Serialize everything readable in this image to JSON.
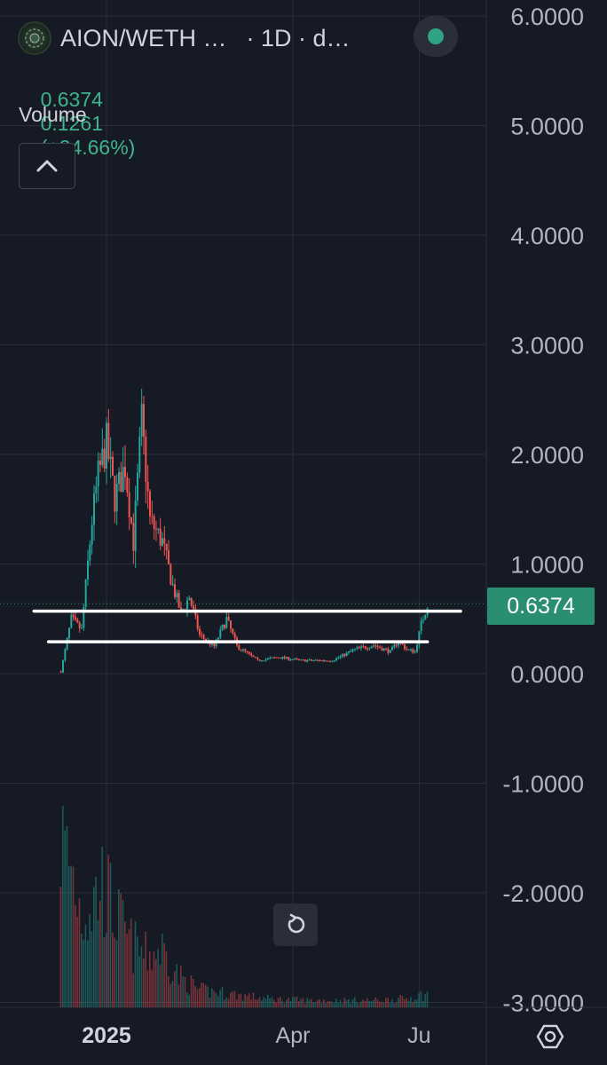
{
  "header": {
    "symbol": "AION/WETH …",
    "interval": "· 1D · d…",
    "ohlc": {
      "last": "0.6374",
      "change": "0.1261",
      "change_pct": "(+24.66%)"
    },
    "volume_label": "Volume"
  },
  "icons": {
    "logo": "aion-logo-icon",
    "status": "market-status-dot-icon",
    "collapse": "chevron-up-icon",
    "reset": "reset-icon",
    "settings": "settings-icon"
  },
  "price_badge": "0.6374",
  "colors": {
    "background": "#161a25",
    "grid": "#2a2e39",
    "up": "#26a69a",
    "down": "#ef5350",
    "badge": "#2a8f70",
    "text": "#d1d4dc"
  },
  "chart_data": {
    "type": "candlestick",
    "title": "",
    "xlabel": "",
    "ylabel": "",
    "ylim": [
      -3.0,
      6.0
    ],
    "y_ticks": [
      "6.0000",
      "5.0000",
      "4.0000",
      "3.0000",
      "2.0000",
      "1.0000",
      "0.0000",
      "-1.0000",
      "-2.0000",
      "-3.0000"
    ],
    "x_ticks": [
      "2025",
      "Apr",
      "Ju"
    ],
    "x_tick_dates": [
      "2025-01-01",
      "2025-04-01",
      "2025-06-01"
    ],
    "x_range": [
      "2024-11-01",
      "2025-06-25"
    ],
    "last_price": 0.6374,
    "grid": true,
    "series": [
      {
        "kind": "price",
        "points": [
          {
            "date": "2024-12-10",
            "close": 0.02
          },
          {
            "date": "2024-12-15",
            "close": 0.5
          },
          {
            "date": "2024-12-20",
            "close": 0.4
          },
          {
            "date": "2024-12-25",
            "close": 1.4
          },
          {
            "date": "2024-12-28",
            "close": 1.8
          },
          {
            "date": "2025-01-01",
            "close": 2.1
          },
          {
            "date": "2025-01-05",
            "close": 1.6
          },
          {
            "date": "2025-01-10",
            "close": 1.9
          },
          {
            "date": "2025-01-14",
            "close": 1.2
          },
          {
            "date": "2025-01-18",
            "close": 2.3
          },
          {
            "date": "2025-01-22",
            "close": 1.4
          },
          {
            "date": "2025-01-28",
            "close": 1.2
          },
          {
            "date": "2025-02-02",
            "close": 0.8
          },
          {
            "date": "2025-02-06",
            "close": 0.55
          },
          {
            "date": "2025-02-10",
            "close": 0.7
          },
          {
            "date": "2025-02-15",
            "close": 0.35
          },
          {
            "date": "2025-02-22",
            "close": 0.25
          },
          {
            "date": "2025-02-28",
            "close": 0.5
          },
          {
            "date": "2025-03-05",
            "close": 0.25
          },
          {
            "date": "2025-03-15",
            "close": 0.12
          },
          {
            "date": "2025-03-25",
            "close": 0.15
          },
          {
            "date": "2025-04-05",
            "close": 0.12
          },
          {
            "date": "2025-04-20",
            "close": 0.12
          },
          {
            "date": "2025-05-01",
            "close": 0.22
          },
          {
            "date": "2025-05-10",
            "close": 0.26
          },
          {
            "date": "2025-05-18",
            "close": 0.2
          },
          {
            "date": "2025-05-22",
            "close": 0.3
          },
          {
            "date": "2025-05-26",
            "close": 0.22
          },
          {
            "date": "2025-05-30",
            "close": 0.2
          },
          {
            "date": "2025-06-02",
            "close": 0.45
          },
          {
            "date": "2025-06-05",
            "close": 0.6374
          }
        ]
      },
      {
        "kind": "volume",
        "relative_points": [
          {
            "date": "2024-12-10",
            "v": 0.98
          },
          {
            "date": "2024-12-15",
            "v": 0.82
          },
          {
            "date": "2024-12-20",
            "v": 0.55
          },
          {
            "date": "2024-12-25",
            "v": 0.6
          },
          {
            "date": "2024-12-30",
            "v": 0.72
          },
          {
            "date": "2025-01-05",
            "v": 0.55
          },
          {
            "date": "2025-01-12",
            "v": 0.38
          },
          {
            "date": "2025-01-20",
            "v": 0.3
          },
          {
            "date": "2025-01-28",
            "v": 0.34
          },
          {
            "date": "2025-02-05",
            "v": 0.18
          },
          {
            "date": "2025-02-15",
            "v": 0.1
          },
          {
            "date": "2025-03-01",
            "v": 0.08
          },
          {
            "date": "2025-03-20",
            "v": 0.05
          },
          {
            "date": "2025-04-10",
            "v": 0.04
          },
          {
            "date": "2025-05-10",
            "v": 0.04
          },
          {
            "date": "2025-05-25",
            "v": 0.05
          },
          {
            "date": "2025-06-05",
            "v": 0.08
          }
        ]
      }
    ],
    "drawings": [
      {
        "type": "horizontal-line",
        "price": 0.57,
        "from": "2024-11-27",
        "to": "2025-06-21"
      },
      {
        "type": "horizontal-line",
        "price": 0.29,
        "from": "2024-12-04",
        "to": "2025-06-05"
      }
    ]
  }
}
